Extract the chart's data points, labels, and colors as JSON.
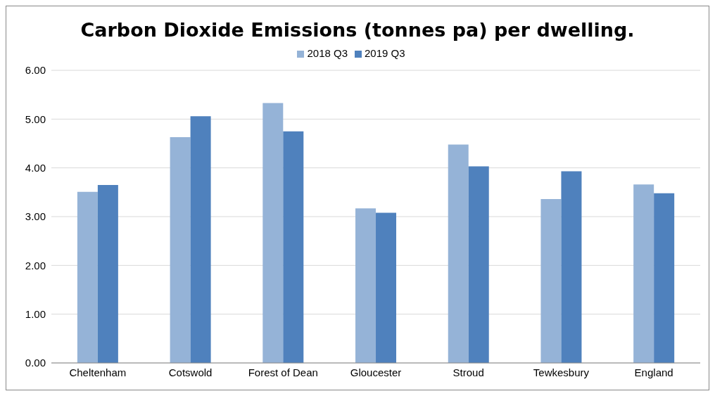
{
  "chart_data": {
    "type": "bar",
    "title": "Carbon Dioxide Emissions (tonnes pa) per dwelling.",
    "categories": [
      "Cheltenham",
      "Cotswold",
      "Forest of Dean",
      "Gloucester",
      "Stroud",
      "Tewkesbury",
      "England"
    ],
    "series": [
      {
        "name": "2018 Q3",
        "color": "#95b3d7",
        "values": [
          3.51,
          4.63,
          5.33,
          3.17,
          4.48,
          3.36,
          3.66
        ]
      },
      {
        "name": "2019 Q3",
        "color": "#4f81bd",
        "values": [
          3.65,
          5.06,
          4.75,
          3.08,
          4.03,
          3.93,
          3.48
        ]
      }
    ],
    "ylim": [
      0,
      6
    ],
    "yticks": [
      {
        "value": 0,
        "label": "0.00"
      },
      {
        "value": 1,
        "label": "1.00"
      },
      {
        "value": 2,
        "label": "2.00"
      },
      {
        "value": 3,
        "label": "3.00"
      },
      {
        "value": 4,
        "label": "4.00"
      },
      {
        "value": 5,
        "label": "5.00"
      },
      {
        "value": 6,
        "label": "6.00"
      }
    ],
    "grid": "y",
    "legend": "top"
  }
}
